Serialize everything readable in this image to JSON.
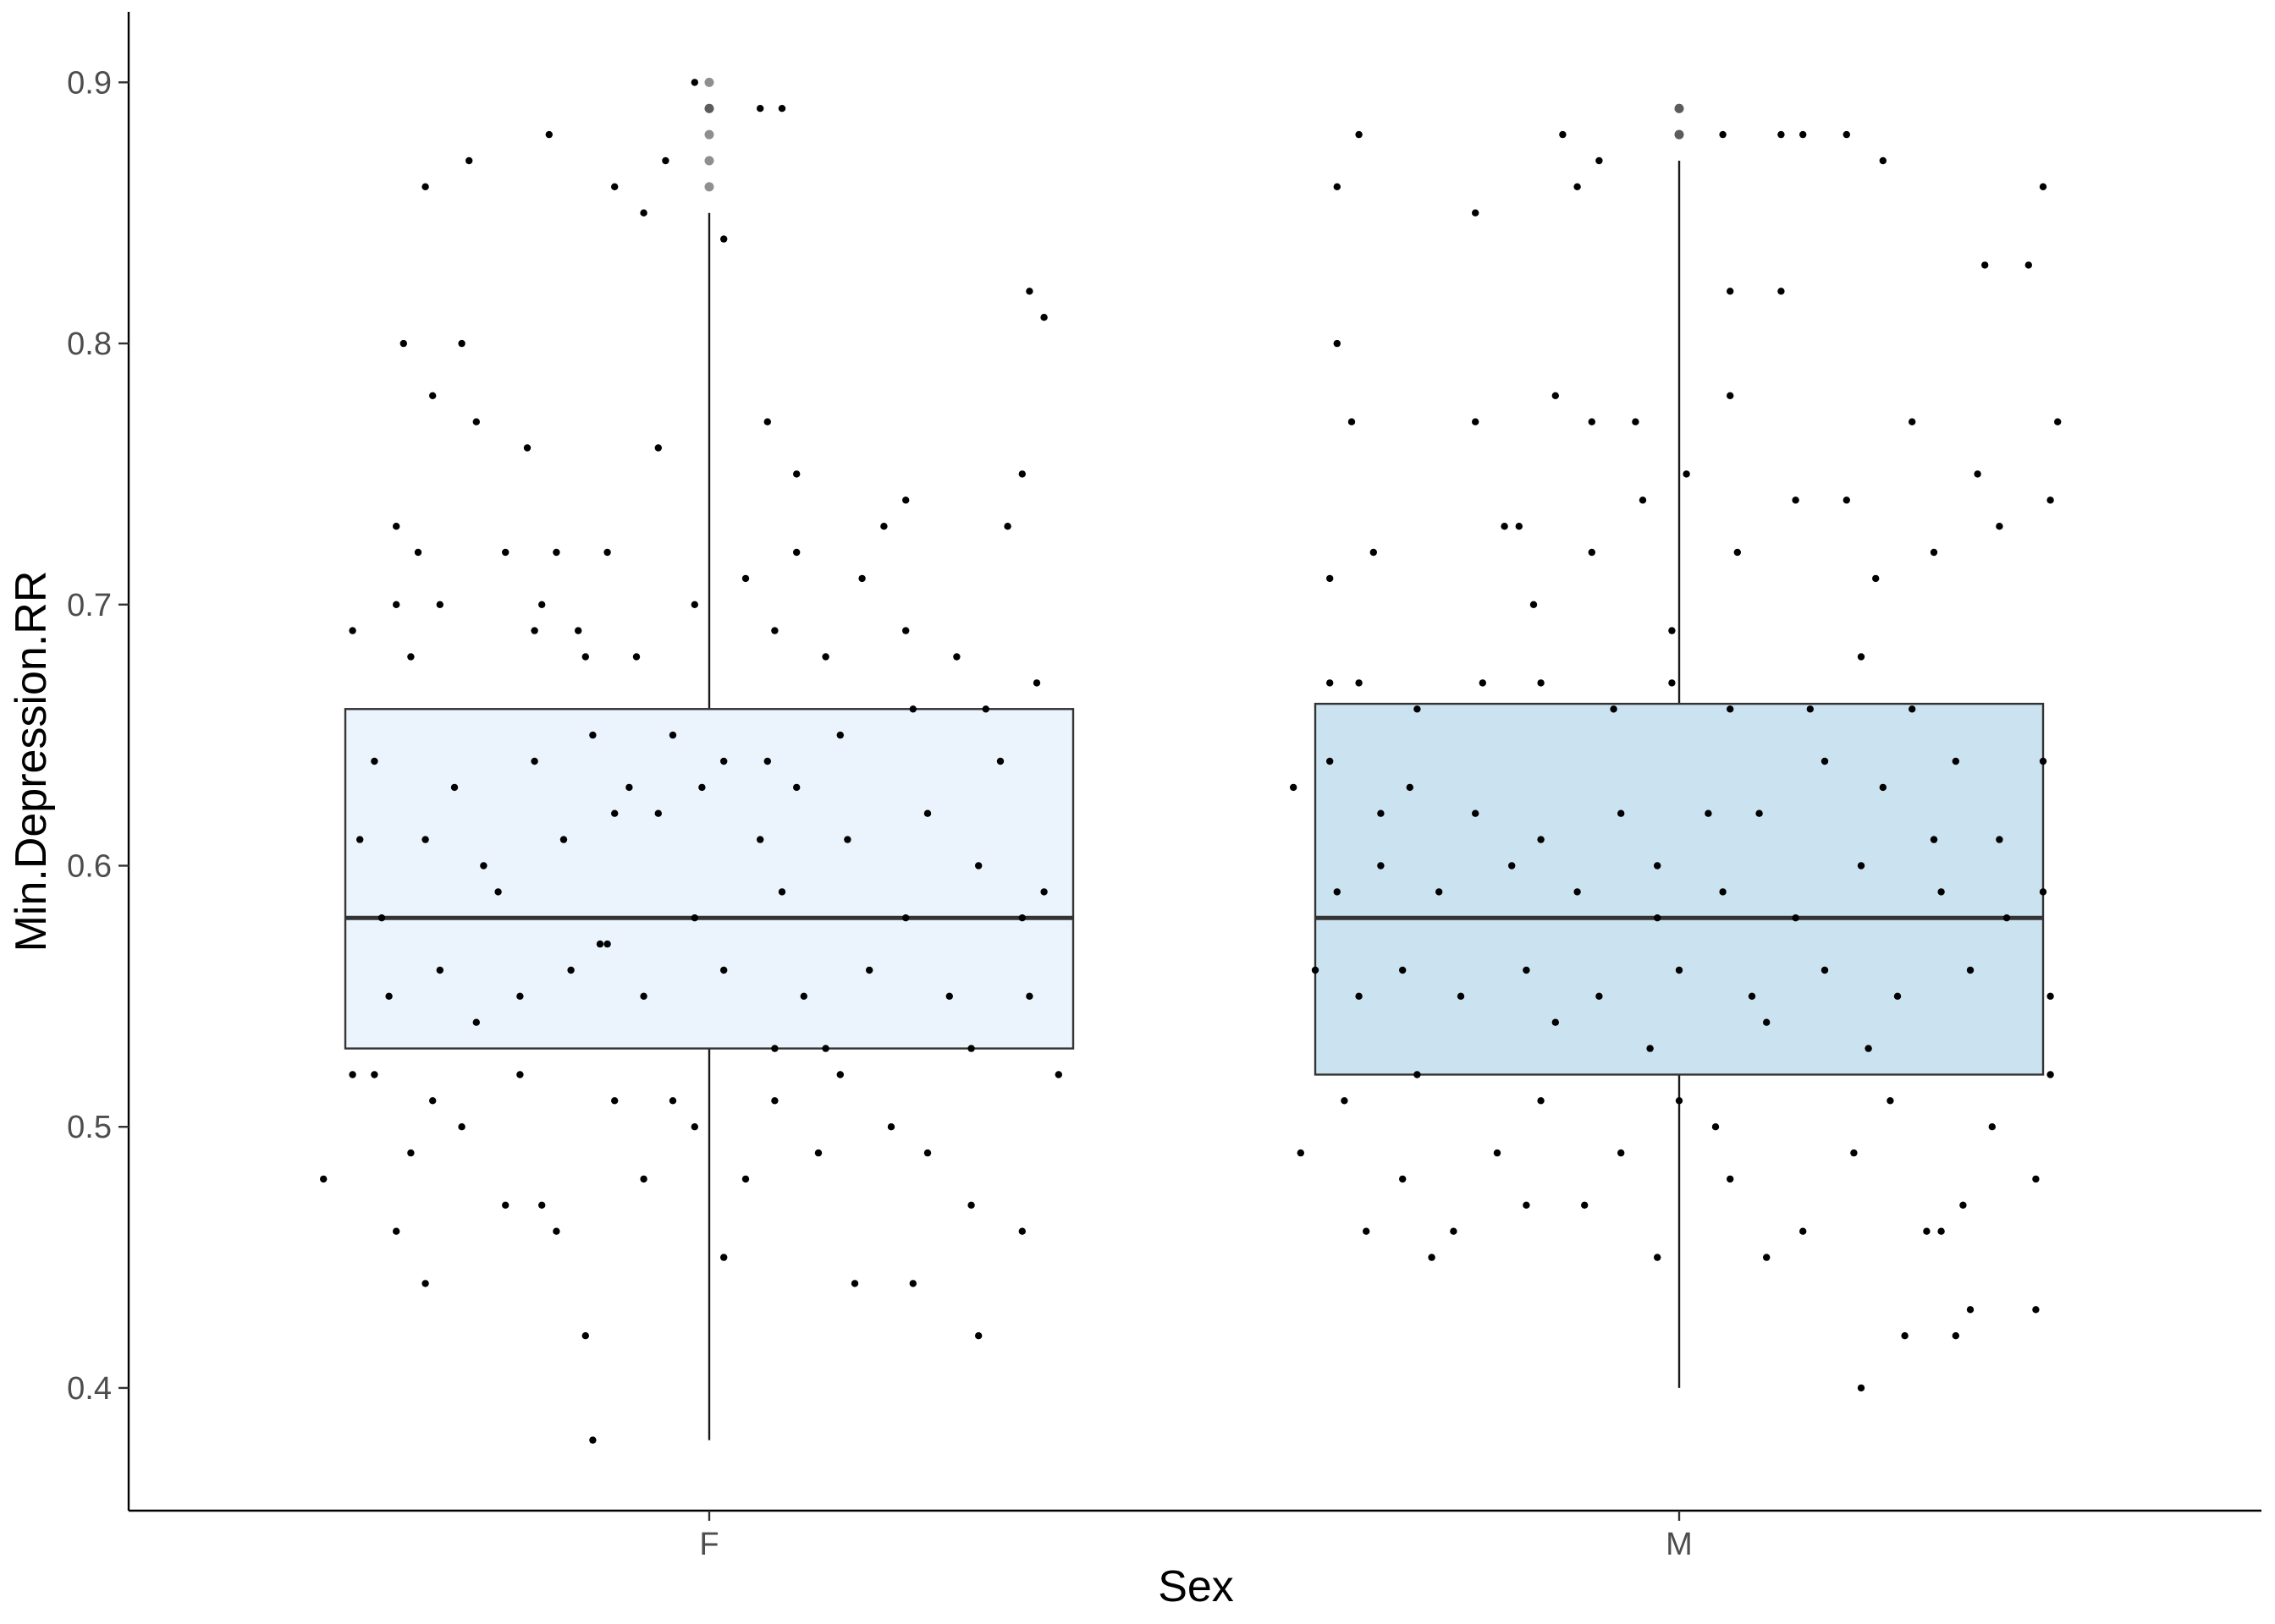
{
  "chart_data": {
    "type": "boxplot",
    "xlabel": "Sex",
    "ylabel": "Min.Depression.RR",
    "categories": [
      "F",
      "M"
    ],
    "ylim": [
      0.353,
      0.927
    ],
    "yticks": [
      0.4,
      0.5,
      0.6,
      0.7,
      0.8,
      0.9
    ],
    "ytick_labels": [
      "0.4",
      "0.5",
      "0.6",
      "0.7",
      "0.8",
      "0.9"
    ],
    "grid": false,
    "legend": "none",
    "boxes": [
      {
        "category": "F",
        "min": 0.38,
        "q1": 0.53,
        "median": 0.58,
        "q3": 0.66,
        "max": 0.85,
        "outliers": [
          0.86,
          0.87,
          0.88,
          0.89,
          0.89,
          0.9
        ],
        "fill": "#ebf3fc"
      },
      {
        "category": "M",
        "min": 0.4,
        "q1": 0.52,
        "median": 0.58,
        "q3": 0.662,
        "max": 0.87,
        "outliers": [
          0.88,
          0.88,
          0.89,
          0.89
        ],
        "fill": "#cbe2f0"
      }
    ],
    "jitter_points": {
      "F": [
        [
          0.48,
          0.9
        ],
        [
          0.44,
          0.87
        ],
        [
          0.6,
          0.89
        ],
        [
          0.57,
          0.89
        ],
        [
          0.52,
          0.84
        ],
        [
          0.28,
          0.88
        ],
        [
          0.37,
          0.86
        ],
        [
          0.41,
          0.85
        ],
        [
          0.17,
          0.87
        ],
        [
          0.11,
          0.86
        ],
        [
          0.08,
          0.8
        ],
        [
          0.16,
          0.8
        ],
        [
          0.12,
          0.78
        ],
        [
          0.18,
          0.77
        ],
        [
          0.25,
          0.76
        ],
        [
          0.43,
          0.76
        ],
        [
          0.58,
          0.77
        ],
        [
          0.62,
          0.75
        ],
        [
          0.77,
          0.74
        ],
        [
          0.93,
          0.75
        ],
        [
          0.94,
          0.82
        ],
        [
          0.96,
          0.81
        ],
        [
          0.07,
          0.73
        ],
        [
          0.1,
          0.72
        ],
        [
          0.29,
          0.72
        ],
        [
          0.36,
          0.72
        ],
        [
          0.22,
          0.72
        ],
        [
          0.62,
          0.72
        ],
        [
          0.74,
          0.73
        ],
        [
          0.91,
          0.73
        ],
        [
          0.55,
          0.71
        ],
        [
          0.01,
          0.69
        ],
        [
          0.07,
          0.7
        ],
        [
          0.13,
          0.7
        ],
        [
          0.26,
          0.69
        ],
        [
          0.27,
          0.7
        ],
        [
          0.32,
          0.69
        ],
        [
          0.48,
          0.7
        ],
        [
          0.59,
          0.69
        ],
        [
          0.66,
          0.68
        ],
        [
          0.71,
          0.71
        ],
        [
          0.77,
          0.69
        ],
        [
          0.84,
          0.68
        ],
        [
          0.95,
          0.67
        ],
        [
          0.4,
          0.68
        ],
        [
          0.09,
          0.68
        ],
        [
          0.33,
          0.68
        ],
        [
          0.88,
          0.66
        ],
        [
          0.04,
          0.64
        ],
        [
          0.15,
          0.63
        ],
        [
          0.26,
          0.64
        ],
        [
          0.34,
          0.65
        ],
        [
          0.45,
          0.65
        ],
        [
          0.52,
          0.64
        ],
        [
          0.58,
          0.64
        ],
        [
          0.68,
          0.65
        ],
        [
          0.78,
          0.66
        ],
        [
          0.9,
          0.64
        ],
        [
          0.62,
          0.63
        ],
        [
          0.39,
          0.63
        ],
        [
          0.49,
          0.63
        ],
        [
          0.02,
          0.61
        ],
        [
          0.11,
          0.61
        ],
        [
          0.19,
          0.6
        ],
        [
          0.3,
          0.61
        ],
        [
          0.37,
          0.62
        ],
        [
          0.43,
          0.62
        ],
        [
          0.57,
          0.61
        ],
        [
          0.69,
          0.61
        ],
        [
          0.8,
          0.62
        ],
        [
          0.87,
          0.6
        ],
        [
          0.96,
          0.59
        ],
        [
          0.05,
          0.58
        ],
        [
          0.21,
          0.59
        ],
        [
          0.35,
          0.57
        ],
        [
          0.48,
          0.58
        ],
        [
          0.6,
          0.59
        ],
        [
          0.77,
          0.58
        ],
        [
          0.93,
          0.58
        ],
        [
          0.06,
          0.55
        ],
        [
          0.13,
          0.56
        ],
        [
          0.24,
          0.55
        ],
        [
          0.31,
          0.56
        ],
        [
          0.41,
          0.55
        ],
        [
          0.52,
          0.56
        ],
        [
          0.63,
          0.55
        ],
        [
          0.72,
          0.56
        ],
        [
          0.83,
          0.55
        ],
        [
          0.94,
          0.55
        ],
        [
          0.18,
          0.54
        ],
        [
          0.59,
          0.53
        ],
        [
          0.36,
          0.57
        ],
        [
          0.66,
          0.53
        ],
        [
          0.86,
          0.53
        ],
        [
          -0.03,
          0.48
        ],
        [
          0.01,
          0.52
        ],
        [
          0.04,
          0.52
        ],
        [
          0.09,
          0.49
        ],
        [
          0.12,
          0.51
        ],
        [
          0.16,
          0.5
        ],
        [
          0.22,
          0.47
        ],
        [
          0.29,
          0.46
        ],
        [
          0.37,
          0.51
        ],
        [
          0.41,
          0.48
        ],
        [
          0.48,
          0.5
        ],
        [
          0.55,
          0.48
        ],
        [
          0.59,
          0.51
        ],
        [
          0.68,
          0.52
        ],
        [
          0.75,
          0.5
        ],
        [
          0.8,
          0.49
        ],
        [
          0.86,
          0.47
        ],
        [
          0.93,
          0.46
        ],
        [
          0.98,
          0.52
        ],
        [
          0.45,
          0.51
        ],
        [
          0.52,
          0.45
        ],
        [
          0.07,
          0.46
        ],
        [
          0.11,
          0.44
        ],
        [
          0.27,
          0.47
        ],
        [
          0.33,
          0.42
        ],
        [
          0.7,
          0.44
        ],
        [
          0.78,
          0.44
        ],
        [
          0.87,
          0.42
        ],
        [
          0.65,
          0.49
        ],
        [
          0.24,
          0.52
        ],
        [
          0.34,
          0.38
        ]
      ],
      "M": [
        [
          0.03,
          0.86
        ],
        [
          0.06,
          0.88
        ],
        [
          0.22,
          0.85
        ],
        [
          0.34,
          0.88
        ],
        [
          0.36,
          0.86
        ],
        [
          0.39,
          0.87
        ],
        [
          0.56,
          0.88
        ],
        [
          0.64,
          0.88
        ],
        [
          0.67,
          0.88
        ],
        [
          0.73,
          0.88
        ],
        [
          0.78,
          0.87
        ],
        [
          1.0,
          0.86
        ],
        [
          0.03,
          0.8
        ],
        [
          0.05,
          0.77
        ],
        [
          0.22,
          0.77
        ],
        [
          0.33,
          0.78
        ],
        [
          0.38,
          0.77
        ],
        [
          0.44,
          0.77
        ],
        [
          0.57,
          0.78
        ],
        [
          0.57,
          0.82
        ],
        [
          0.64,
          0.82
        ],
        [
          0.82,
          0.77
        ],
        [
          0.92,
          0.83
        ],
        [
          0.98,
          0.83
        ],
        [
          1.02,
          0.77
        ],
        [
          0.02,
          0.71
        ],
        [
          0.08,
          0.72
        ],
        [
          0.26,
          0.73
        ],
        [
          0.28,
          0.73
        ],
        [
          0.3,
          0.7
        ],
        [
          0.38,
          0.72
        ],
        [
          0.45,
          0.74
        ],
        [
          0.51,
          0.75
        ],
        [
          0.58,
          0.72
        ],
        [
          0.66,
          0.74
        ],
        [
          0.73,
          0.74
        ],
        [
          0.77,
          0.71
        ],
        [
          0.85,
          0.72
        ],
        [
          0.91,
          0.75
        ],
        [
          1.01,
          0.74
        ],
        [
          0.94,
          0.73
        ],
        [
          0.49,
          0.69
        ],
        [
          0.02,
          0.67
        ],
        [
          0.06,
          0.67
        ],
        [
          0.14,
          0.66
        ],
        [
          0.23,
          0.67
        ],
        [
          0.31,
          0.67
        ],
        [
          0.41,
          0.66
        ],
        [
          0.49,
          0.67
        ],
        [
          0.57,
          0.66
        ],
        [
          0.68,
          0.66
        ],
        [
          0.75,
          0.68
        ],
        [
          0.82,
          0.66
        ],
        [
          0.88,
          0.64
        ],
        [
          -0.03,
          0.63
        ],
        [
          0.02,
          0.64
        ],
        [
          0.09,
          0.62
        ],
        [
          0.13,
          0.63
        ],
        [
          0.22,
          0.62
        ],
        [
          0.31,
          0.61
        ],
        [
          0.42,
          0.62
        ],
        [
          0.54,
          0.62
        ],
        [
          0.61,
          0.62
        ],
        [
          0.7,
          0.64
        ],
        [
          0.78,
          0.63
        ],
        [
          0.85,
          0.61
        ],
        [
          0.94,
          0.61
        ],
        [
          1.0,
          0.64
        ],
        [
          0.47,
          0.6
        ],
        [
          0.03,
          0.59
        ],
        [
          0.09,
          0.6
        ],
        [
          0.17,
          0.59
        ],
        [
          0.27,
          0.6
        ],
        [
          0.36,
          0.59
        ],
        [
          0.47,
          0.58
        ],
        [
          0.56,
          0.59
        ],
        [
          0.66,
          0.58
        ],
        [
          0.75,
          0.6
        ],
        [
          0.86,
          0.59
        ],
        [
          0.95,
          0.58
        ],
        [
          1.0,
          0.59
        ],
        [
          0.0,
          0.56
        ],
        [
          0.06,
          0.55
        ],
        [
          0.12,
          0.56
        ],
        [
          0.2,
          0.55
        ],
        [
          0.29,
          0.56
        ],
        [
          0.39,
          0.55
        ],
        [
          0.5,
          0.56
        ],
        [
          0.6,
          0.55
        ],
        [
          0.7,
          0.56
        ],
        [
          0.8,
          0.55
        ],
        [
          0.9,
          0.56
        ],
        [
          1.01,
          0.55
        ],
        [
          0.33,
          0.54
        ],
        [
          0.46,
          0.53
        ],
        [
          0.62,
          0.54
        ],
        [
          0.76,
          0.53
        ],
        [
          -0.02,
          0.49
        ],
        [
          0.04,
          0.51
        ],
        [
          0.07,
          0.46
        ],
        [
          0.12,
          0.48
        ],
        [
          0.16,
          0.45
        ],
        [
          0.19,
          0.46
        ],
        [
          0.25,
          0.49
        ],
        [
          0.31,
          0.51
        ],
        [
          0.37,
          0.47
        ],
        [
          0.42,
          0.49
        ],
        [
          0.47,
          0.45
        ],
        [
          0.5,
          0.51
        ],
        [
          0.57,
          0.48
        ],
        [
          0.62,
          0.45
        ],
        [
          0.67,
          0.46
        ],
        [
          0.74,
          0.49
        ],
        [
          0.79,
          0.51
        ],
        [
          0.84,
          0.46
        ],
        [
          0.89,
          0.47
        ],
        [
          0.93,
          0.5
        ],
        [
          0.99,
          0.48
        ],
        [
          1.01,
          0.52
        ],
        [
          0.14,
          0.52
        ],
        [
          0.55,
          0.5
        ],
        [
          0.29,
          0.47
        ],
        [
          0.75,
          0.4
        ],
        [
          0.81,
          0.42
        ],
        [
          0.88,
          0.42
        ],
        [
          0.9,
          0.43
        ],
        [
          0.99,
          0.43
        ],
        [
          0.86,
          0.46
        ]
      ]
    }
  }
}
